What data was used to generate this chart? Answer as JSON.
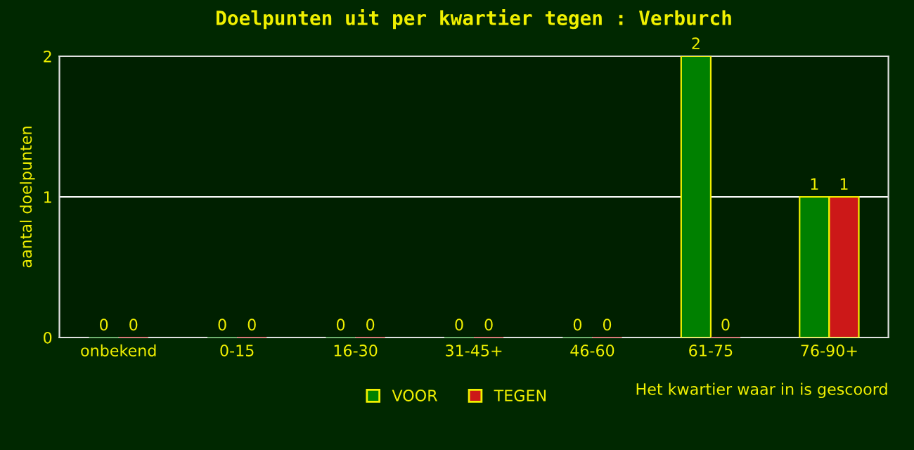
{
  "chart_data": {
    "type": "bar",
    "title": "Doelpunten uit per kwartier tegen : Verburch",
    "xlabel": "Het kwartier waar in is gescoord",
    "ylabel": "aantal doelpunten",
    "categories": [
      "onbekend",
      "0-15",
      "16-30",
      "31-45+",
      "46-60",
      "61-75",
      "76-90+"
    ],
    "series": [
      {
        "name": "VOOR",
        "color": "#008000",
        "values": [
          0,
          0,
          0,
          0,
          0,
          2,
          1
        ]
      },
      {
        "name": "TEGEN",
        "color": "#cc1818",
        "values": [
          0,
          0,
          0,
          0,
          0,
          0,
          1
        ]
      }
    ],
    "ylim": [
      0,
      2
    ],
    "yticks": [
      0,
      1,
      2
    ],
    "grid": "y",
    "legend": "bottom",
    "data_labels": true
  }
}
